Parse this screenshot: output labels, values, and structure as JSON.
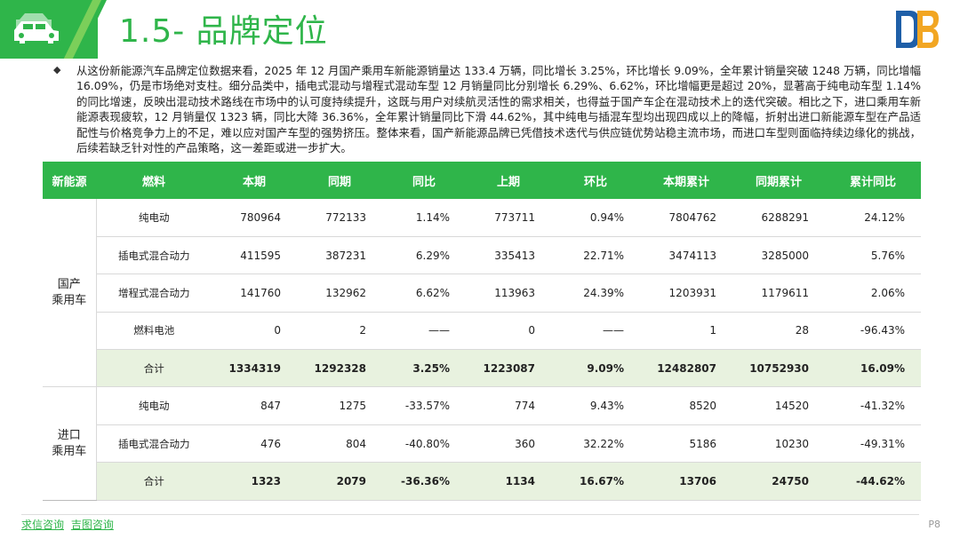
{
  "header": {
    "title": "1.5- 品牌定位"
  },
  "intro": {
    "text": "从这份新能源汽车品牌定位数据来看，2025 年 12 月国产乘用车新能源销量达 133.4 万辆，同比增长 3.25%，环比增长 9.09%，全年累计销量突破 1248 万辆，同比增幅 16.09%，仍是市场绝对支柱。细分品类中，插电式混动与增程式混动车型 12 月销量同比分别增长 6.29%、6.62%，环比增幅更是超过 20%，显著高于纯电动车型 1.14% 的同比增速，反映出混动技术路线在市场中的认可度持续提升，这既与用户对续航灵活性的需求相关，也得益于国产车企在混动技术上的迭代突破。相比之下，进口乘用车新能源表现疲软，12 月销量仅 1323 辆，同比大降 36.36%，全年累计销量同比下滑 44.62%，其中纯电与插混车型均出现四成以上的降幅，折射出进口新能源车型在产品适配性与价格竞争力上的不足，难以应对国产车型的强势挤压。整体来看，国产新能源品牌已凭借技术迭代与供应链优势站稳主流市场，而进口车型则面临持续边缘化的挑战，后续若缺乏针对性的产品策略，这一差距或进一步扩大。"
  },
  "table": {
    "headers": [
      "新能源",
      "燃料",
      "本期",
      "同期",
      "同比",
      "上期",
      "环比",
      "本期累计",
      "同期累计",
      "累计同比"
    ],
    "groups": [
      {
        "label_line1": "国产",
        "label_line2": "乘用车",
        "rows": [
          {
            "fuel": "纯电动",
            "cur": "780964",
            "prev_year": "772133",
            "yoy": "1.14%",
            "prev": "773711",
            "mom": "0.94%",
            "cum": "7804762",
            "cum_prev": "6288291",
            "cum_yoy": "24.12%"
          },
          {
            "fuel": "插电式混合动力",
            "cur": "411595",
            "prev_year": "387231",
            "yoy": "6.29%",
            "prev": "335413",
            "mom": "22.71%",
            "cum": "3474113",
            "cum_prev": "3285000",
            "cum_yoy": "5.76%"
          },
          {
            "fuel": "增程式混合动力",
            "cur": "141760",
            "prev_year": "132962",
            "yoy": "6.62%",
            "prev": "113963",
            "mom": "24.39%",
            "cum": "1203931",
            "cum_prev": "1179611",
            "cum_yoy": "2.06%"
          },
          {
            "fuel": "燃料电池",
            "cur": "0",
            "prev_year": "2",
            "yoy": "——",
            "prev": "0",
            "mom": "——",
            "cum": "1",
            "cum_prev": "28",
            "cum_yoy": "-96.43%"
          },
          {
            "fuel": "合计",
            "cur": "1334319",
            "prev_year": "1292328",
            "yoy": "3.25%",
            "prev": "1223087",
            "mom": "9.09%",
            "cum": "12482807",
            "cum_prev": "10752930",
            "cum_yoy": "16.09%",
            "sum": true
          }
        ]
      },
      {
        "label_line1": "进口",
        "label_line2": "乘用车",
        "rows": [
          {
            "fuel": "纯电动",
            "cur": "847",
            "prev_year": "1275",
            "yoy": "-33.57%",
            "prev": "774",
            "mom": "9.43%",
            "cum": "8520",
            "cum_prev": "14520",
            "cum_yoy": "-41.32%"
          },
          {
            "fuel": "插电式混合动力",
            "cur": "476",
            "prev_year": "804",
            "yoy": "-40.80%",
            "prev": "360",
            "mom": "32.22%",
            "cum": "5186",
            "cum_prev": "10230",
            "cum_yoy": "-49.31%"
          },
          {
            "fuel": "合计",
            "cur": "1323",
            "prev_year": "2079",
            "yoy": "-36.36%",
            "prev": "1134",
            "mom": "16.67%",
            "cum": "13706",
            "cum_prev": "24750",
            "cum_yoy": "-44.62%",
            "sum": true
          }
        ]
      }
    ]
  },
  "footer": {
    "link1": "求信咨询",
    "link2": "吉图咨询",
    "page": "P8"
  },
  "icons": {
    "header_icon": "car-icon",
    "logo": "db-logo-icon"
  },
  "colors": {
    "brand_green": "#2fb54a",
    "sum_row_bg": "#e8f2df"
  }
}
